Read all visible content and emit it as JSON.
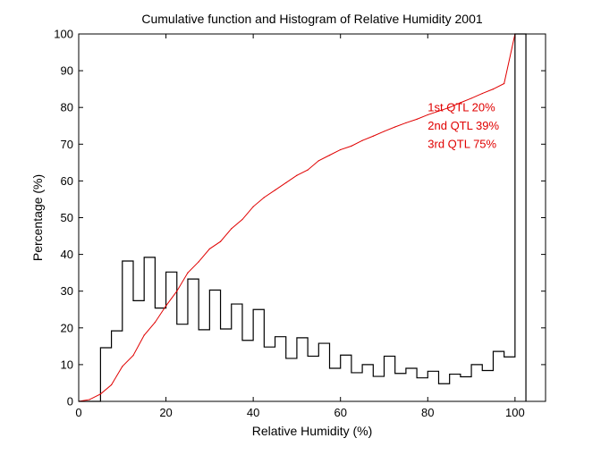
{
  "chart_data": {
    "type": "area",
    "title": "Cumulative function and Histogram of Relative Humidity 2001",
    "xlabel": "Relative Humidity (%)",
    "ylabel": "Percentage (%)",
    "xlim": [
      0,
      107
    ],
    "ylim": [
      0,
      100
    ],
    "xticks": [
      0,
      20,
      40,
      60,
      80,
      100
    ],
    "yticks": [
      0,
      10,
      20,
      30,
      40,
      50,
      60,
      70,
      80,
      90,
      100
    ],
    "grid": false,
    "series": [
      {
        "name": "Histogram",
        "kind": "stairs",
        "color": "#000000",
        "bin_edges": [
          0,
          5,
          7.5,
          10,
          12.5,
          15,
          17.5,
          20,
          22.5,
          25,
          27.5,
          30,
          32.5,
          35,
          37.5,
          40,
          42.5,
          45,
          47.5,
          50,
          52.5,
          55,
          57.5,
          60,
          62.5,
          65,
          67.5,
          70,
          72.5,
          75,
          77.5,
          80,
          82.5,
          85,
          87.5,
          90,
          92.5,
          95,
          97.5,
          100,
          102.5
        ],
        "values": [
          0,
          14.6,
          19.2,
          38.2,
          27.4,
          39.2,
          25.4,
          35.2,
          21,
          33.3,
          19.5,
          30.3,
          19.7,
          26.5,
          16.6,
          25,
          14.8,
          17.6,
          11.7,
          17.3,
          12.3,
          15.8,
          9,
          12.6,
          7.8,
          10,
          6.8,
          12.3,
          7.6,
          9,
          6.4,
          8.2,
          4.8,
          7.4,
          6.7,
          10,
          8.4,
          13.6,
          12.1,
          100
        ]
      },
      {
        "name": "Cumulative function",
        "kind": "line",
        "color": "#e00000",
        "x": [
          0,
          2.5,
          5,
          7.5,
          10,
          12.5,
          15,
          17.5,
          20,
          22.5,
          25,
          27.5,
          30,
          32.5,
          35,
          37.5,
          40,
          42.5,
          45,
          47.5,
          50,
          52.5,
          55,
          57.5,
          60,
          62.5,
          65,
          67.5,
          70,
          72.5,
          75,
          77.5,
          80,
          82.5,
          85,
          87.5,
          90,
          92.5,
          95,
          97.5,
          100
        ],
        "y": [
          0,
          0.5,
          2,
          4.5,
          9.5,
          12.5,
          18,
          21.5,
          26,
          30,
          35,
          38,
          41.5,
          43.5,
          47,
          49.5,
          53,
          55.5,
          57.5,
          59.5,
          61.5,
          63,
          65.5,
          67,
          68.5,
          69.5,
          71,
          72.2,
          73.5,
          74.7,
          75.8,
          76.8,
          78,
          79,
          80,
          81.3,
          82.5,
          83.8,
          85,
          86.5,
          100
        ]
      }
    ],
    "annotations": [
      {
        "text": "1st QTL  20%",
        "x": 80,
        "y": 79,
        "color": "#e00000"
      },
      {
        "text": "2nd QTL  39%",
        "x": 80,
        "y": 74,
        "color": "#e00000"
      },
      {
        "text": "3rd QTL  75%",
        "x": 80,
        "y": 69,
        "color": "#e00000"
      }
    ]
  }
}
